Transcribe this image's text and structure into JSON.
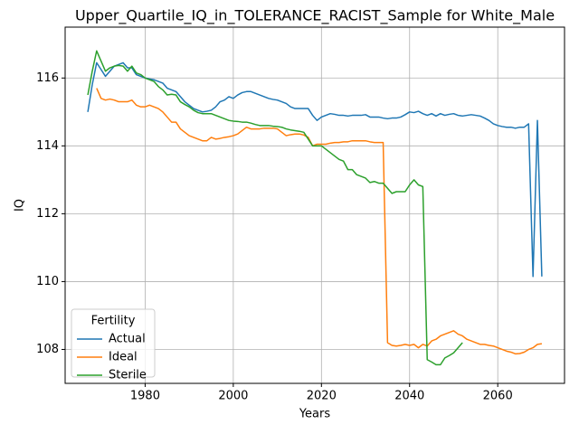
{
  "chart_data": {
    "type": "line",
    "title": "Upper_Quartile_IQ_in_TOLERANCE_RACIST_Sample for White_Male",
    "xlabel": "Years",
    "ylabel": "IQ",
    "legend_title": "Fertility",
    "legend_loc": "lower left",
    "grid": true,
    "xlim": [
      1961.85,
      2075.15
    ],
    "ylim": [
      107.0,
      117.5
    ],
    "xticks": [
      1980,
      2000,
      2020,
      2040,
      2060
    ],
    "yticks": [
      108,
      110,
      112,
      114,
      116
    ],
    "x": [
      1967,
      1968,
      1969,
      1970,
      1971,
      1972,
      1973,
      1974,
      1975,
      1976,
      1977,
      1978,
      1979,
      1980,
      1981,
      1982,
      1983,
      1984,
      1985,
      1986,
      1987,
      1988,
      1989,
      1990,
      1991,
      1992,
      1993,
      1994,
      1995,
      1996,
      1997,
      1998,
      1999,
      2000,
      2001,
      2002,
      2003,
      2004,
      2005,
      2006,
      2007,
      2008,
      2009,
      2010,
      2011,
      2012,
      2013,
      2014,
      2015,
      2016,
      2017,
      2018,
      2019,
      2020,
      2021,
      2022,
      2023,
      2024,
      2025,
      2026,
      2027,
      2028,
      2029,
      2030,
      2031,
      2032,
      2033,
      2034,
      2035,
      2036,
      2037,
      2038,
      2039,
      2040,
      2041,
      2042,
      2043,
      2044,
      2045,
      2046,
      2047,
      2048,
      2049,
      2050,
      2051,
      2052,
      2053,
      2054,
      2055,
      2056,
      2057,
      2058,
      2059,
      2060,
      2061,
      2062,
      2063,
      2064,
      2065,
      2066,
      2067,
      2068,
      2069,
      2070
    ],
    "series": [
      {
        "name": "Actual",
        "color": "#1f77b4",
        "values": [
          115.0,
          115.8,
          116.45,
          116.25,
          116.05,
          116.2,
          116.35,
          116.4,
          116.45,
          116.3,
          116.3,
          116.1,
          116.05,
          116.0,
          115.97,
          115.95,
          115.9,
          115.85,
          115.7,
          115.65,
          115.6,
          115.45,
          115.3,
          115.2,
          115.1,
          115.05,
          115.0,
          115.02,
          115.05,
          115.15,
          115.3,
          115.35,
          115.45,
          115.4,
          115.5,
          115.57,
          115.6,
          115.6,
          115.55,
          115.5,
          115.45,
          115.4,
          115.37,
          115.35,
          115.3,
          115.25,
          115.15,
          115.1,
          115.1,
          115.1,
          115.1,
          114.9,
          114.75,
          114.85,
          114.9,
          114.95,
          114.93,
          114.9,
          114.9,
          114.88,
          114.9,
          114.9,
          114.9,
          114.92,
          114.85,
          114.85,
          114.85,
          114.82,
          114.8,
          114.82,
          114.82,
          114.85,
          114.92,
          115.0,
          114.98,
          115.02,
          114.95,
          114.9,
          114.95,
          114.88,
          114.95,
          114.9,
          114.93,
          114.95,
          114.9,
          114.88,
          114.9,
          114.92,
          114.9,
          114.88,
          114.82,
          114.75,
          114.65,
          114.6,
          114.57,
          114.55,
          114.55,
          114.52,
          114.55,
          114.55,
          114.65,
          110.15,
          114.75,
          110.15
        ]
      },
      {
        "name": "Ideal",
        "color": "#ff7f0e",
        "values": [
          null,
          null,
          115.7,
          115.4,
          115.35,
          115.38,
          115.35,
          115.3,
          115.3,
          115.3,
          115.35,
          115.2,
          115.15,
          115.15,
          115.2,
          115.15,
          115.1,
          115.0,
          114.85,
          114.7,
          114.7,
          114.5,
          114.4,
          114.3,
          114.25,
          114.2,
          114.15,
          114.15,
          114.25,
          114.2,
          114.22,
          114.25,
          114.27,
          114.3,
          114.35,
          114.45,
          114.55,
          114.5,
          114.5,
          114.5,
          114.52,
          114.52,
          114.52,
          114.5,
          114.4,
          114.3,
          114.33,
          114.35,
          114.35,
          114.32,
          114.25,
          114.0,
          114.05,
          114.05,
          114.05,
          114.08,
          114.1,
          114.1,
          114.12,
          114.12,
          114.15,
          114.15,
          114.15,
          114.15,
          114.12,
          114.1,
          114.1,
          114.1,
          108.2,
          108.12,
          108.1,
          108.12,
          108.15,
          108.12,
          108.15,
          108.05,
          108.15,
          108.1,
          108.25,
          108.3,
          108.4,
          108.45,
          108.5,
          108.55,
          108.45,
          108.4,
          108.3,
          108.25,
          108.2,
          108.15,
          108.15,
          108.12,
          108.1,
          108.05,
          108.0,
          107.95,
          107.92,
          107.87,
          107.88,
          107.92,
          108.0,
          108.05,
          108.15,
          108.17
        ]
      },
      {
        "name": "Sterile",
        "color": "#2ca02c",
        "values": [
          115.5,
          116.2,
          116.8,
          116.5,
          116.2,
          116.3,
          116.35,
          116.37,
          116.35,
          116.2,
          116.35,
          116.15,
          116.1,
          116.0,
          115.95,
          115.9,
          115.75,
          115.65,
          115.5,
          115.52,
          115.5,
          115.3,
          115.22,
          115.15,
          115.05,
          114.98,
          114.95,
          114.95,
          114.95,
          114.9,
          114.85,
          114.8,
          114.75,
          114.73,
          114.72,
          114.7,
          114.7,
          114.67,
          114.63,
          114.6,
          114.6,
          114.6,
          114.58,
          114.57,
          114.55,
          114.5,
          114.47,
          114.45,
          114.43,
          114.4,
          114.2,
          114.0,
          114.0,
          114.0,
          113.9,
          113.8,
          113.7,
          113.6,
          113.55,
          113.3,
          113.3,
          113.15,
          113.1,
          113.05,
          112.92,
          112.95,
          112.9,
          112.9,
          112.75,
          112.6,
          112.65,
          112.65,
          112.65,
          112.85,
          113.0,
          112.85,
          112.8,
          107.7,
          107.63,
          107.55,
          107.55,
          107.75,
          107.82,
          107.9,
          108.05,
          108.2,
          null,
          null,
          null,
          null,
          null,
          null,
          null,
          null,
          null,
          null,
          null,
          null,
          null,
          null,
          null,
          null,
          null,
          null
        ]
      }
    ]
  }
}
